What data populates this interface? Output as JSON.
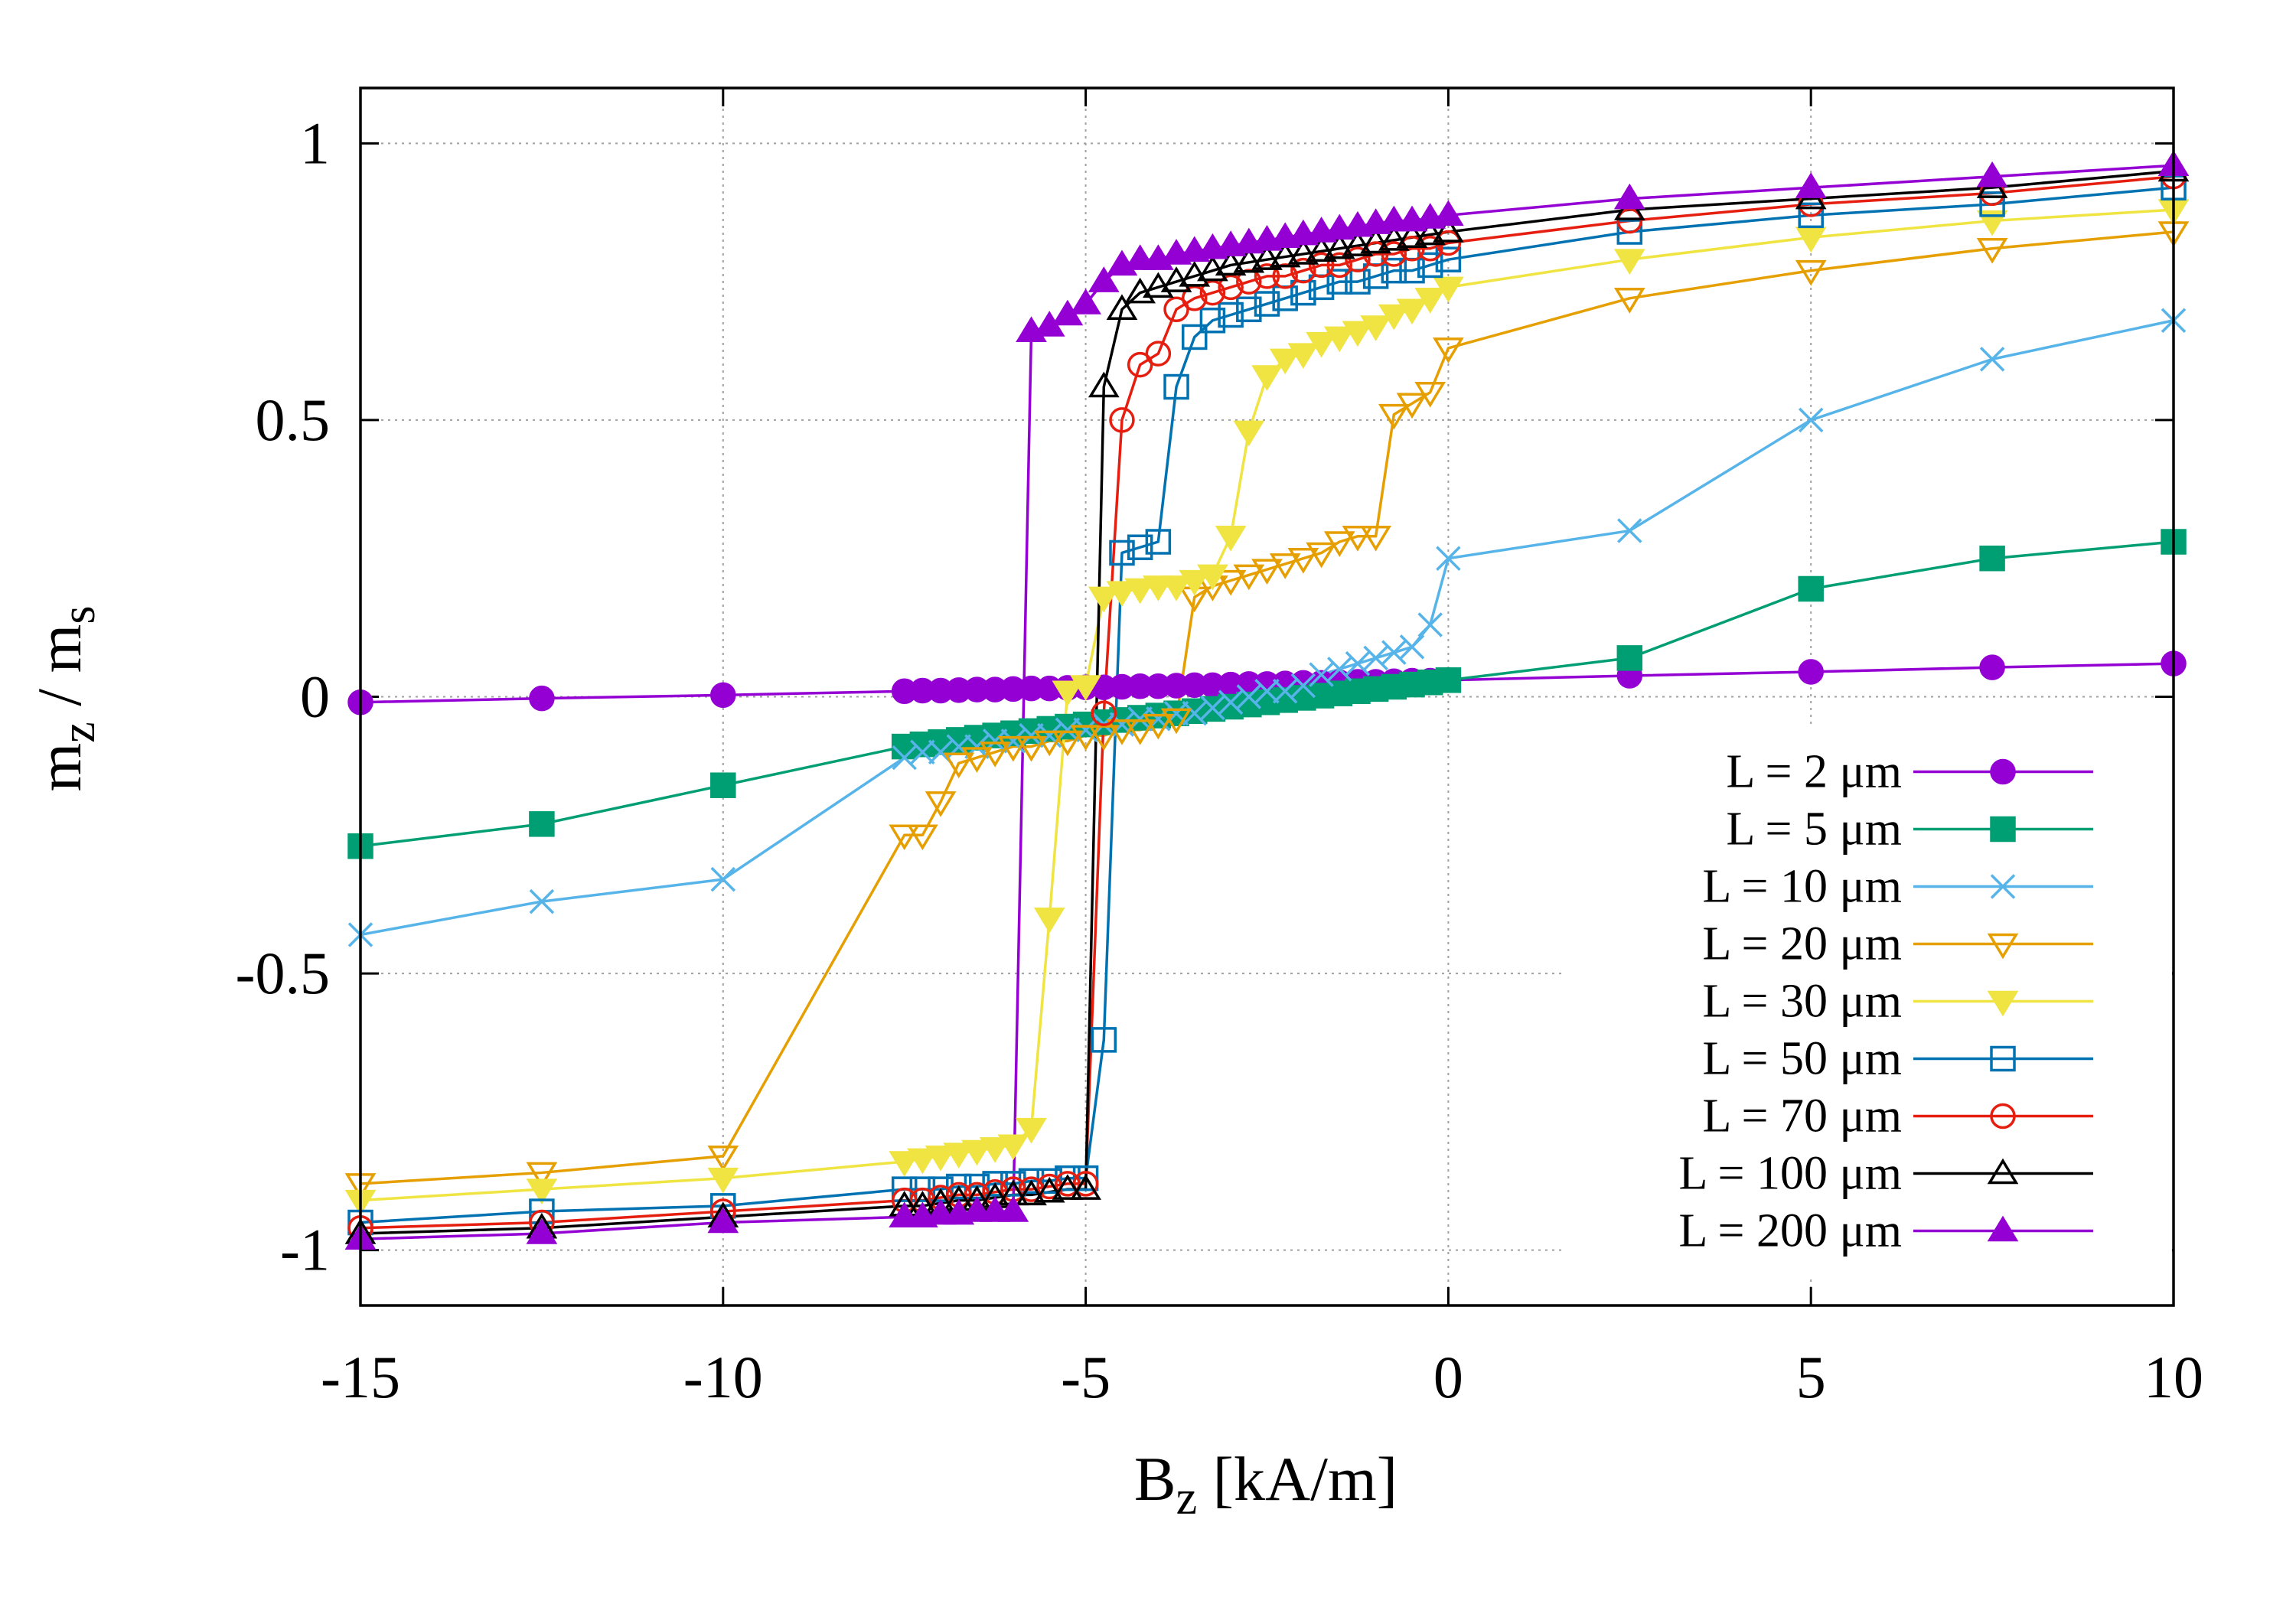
{
  "chart_data": {
    "type": "line",
    "xlabel": [
      "B",
      "z",
      " [kA/m]"
    ],
    "ylabel": [
      "m",
      "z",
      " / m",
      "s"
    ],
    "x": [
      -15,
      -12.5,
      -10,
      -7.5,
      -7.25,
      -7,
      -6.75,
      -6.5,
      -6.25,
      -6,
      -5.75,
      -5.5,
      -5.25,
      -5,
      -4.75,
      -4.5,
      -4.25,
      -4,
      -3.75,
      -3.5,
      -3.25,
      -3,
      -2.75,
      -2.5,
      -2.25,
      -2,
      -1.75,
      -1.5,
      -1.25,
      -1,
      -0.75,
      -0.5,
      -0.25,
      0,
      2.5,
      5,
      7.5,
      10
    ],
    "xlim": [
      -15,
      10
    ],
    "ylim": [
      -1.1,
      1.1
    ],
    "xticks": [
      -15,
      -10,
      -5,
      0,
      5,
      10
    ],
    "yticks": [
      -1,
      -0.5,
      0,
      0.5,
      1
    ],
    "grid": true,
    "legend": "lower right",
    "series": [
      {
        "name": "L = 2 μm",
        "color": "#9400d3",
        "marker": "circle",
        "filled": true,
        "values": [
          -0.01,
          -0.003,
          0.003,
          0.01,
          0.011,
          0.011,
          0.012,
          0.013,
          0.013,
          0.014,
          0.015,
          0.015,
          0.016,
          0.017,
          0.017,
          0.018,
          0.019,
          0.019,
          0.02,
          0.021,
          0.021,
          0.022,
          0.023,
          0.023,
          0.024,
          0.025,
          0.025,
          0.026,
          0.027,
          0.027,
          0.028,
          0.029,
          0.029,
          0.03,
          0.038,
          0.045,
          0.053,
          0.06
        ]
      },
      {
        "name": "L = 5 μm",
        "color": "#009e73",
        "marker": "square",
        "filled": true,
        "values": [
          -0.27,
          -0.23,
          -0.16,
          -0.09,
          -0.086,
          -0.082,
          -0.078,
          -0.074,
          -0.07,
          -0.066,
          -0.062,
          -0.058,
          -0.054,
          -0.05,
          -0.046,
          -0.042,
          -0.038,
          -0.034,
          -0.03,
          -0.026,
          -0.022,
          -0.018,
          -0.014,
          -0.01,
          -0.006,
          -0.002,
          0.002,
          0.006,
          0.01,
          0.014,
          0.018,
          0.022,
          0.026,
          0.03,
          0.07,
          0.195,
          0.25,
          0.28
        ]
      },
      {
        "name": "L = 10 μm",
        "color": "#56b4e9",
        "marker": "cross",
        "filled": false,
        "values": [
          -0.43,
          -0.37,
          -0.33,
          -0.11,
          -0.1,
          -0.1,
          -0.09,
          -0.09,
          -0.08,
          -0.08,
          -0.07,
          -0.07,
          -0.06,
          -0.06,
          -0.05,
          -0.05,
          -0.04,
          -0.04,
          -0.03,
          -0.03,
          -0.02,
          -0.01,
          0,
          0.01,
          0.01,
          0.02,
          0.04,
          0.05,
          0.06,
          0.07,
          0.08,
          0.09,
          0.13,
          0.25,
          0.3,
          0.5,
          0.61,
          0.68
        ]
      },
      {
        "name": "L = 20 μm",
        "color": "#e69f00",
        "marker": "triangle-down",
        "filled": false,
        "values": [
          -0.88,
          -0.86,
          -0.83,
          -0.25,
          -0.25,
          -0.19,
          -0.12,
          -0.11,
          -0.1,
          -0.09,
          -0.09,
          -0.08,
          -0.08,
          -0.07,
          -0.07,
          -0.06,
          -0.06,
          -0.05,
          -0.04,
          0.18,
          0.2,
          0.21,
          0.22,
          0.23,
          0.24,
          0.25,
          0.26,
          0.28,
          0.29,
          0.29,
          0.51,
          0.53,
          0.55,
          0.63,
          0.72,
          0.77,
          0.81,
          0.84
        ]
      },
      {
        "name": "L = 30 μm",
        "color": "#f0e442",
        "marker": "triangle-down",
        "filled": true,
        "values": [
          -0.91,
          -0.89,
          -0.87,
          -0.84,
          -0.835,
          -0.83,
          -0.825,
          -0.82,
          -0.815,
          -0.81,
          -0.78,
          -0.4,
          0.01,
          0.02,
          0.18,
          0.19,
          0.195,
          0.2,
          0.2,
          0.21,
          0.22,
          0.29,
          0.48,
          0.58,
          0.61,
          0.62,
          0.64,
          0.65,
          0.66,
          0.67,
          0.69,
          0.7,
          0.72,
          0.74,
          0.79,
          0.83,
          0.86,
          0.88
        ]
      },
      {
        "name": "L = 50 μm",
        "color": "#0072b2",
        "marker": "square",
        "filled": false,
        "values": [
          -0.95,
          -0.93,
          -0.92,
          -0.89,
          -0.89,
          -0.89,
          -0.885,
          -0.885,
          -0.88,
          -0.88,
          -0.875,
          -0.875,
          -0.87,
          -0.87,
          -0.62,
          0.26,
          0.27,
          0.28,
          0.56,
          0.65,
          0.68,
          0.69,
          0.7,
          0.71,
          0.72,
          0.73,
          0.74,
          0.75,
          0.75,
          0.76,
          0.77,
          0.77,
          0.78,
          0.79,
          0.84,
          0.87,
          0.89,
          0.92
        ]
      },
      {
        "name": "L = 70 μm",
        "color": "#e51e10",
        "marker": "circle",
        "filled": false,
        "values": [
          -0.96,
          -0.95,
          -0.93,
          -0.91,
          -0.91,
          -0.905,
          -0.9,
          -0.9,
          -0.895,
          -0.89,
          -0.89,
          -0.885,
          -0.88,
          -0.88,
          -0.03,
          0.5,
          0.6,
          0.62,
          0.7,
          0.72,
          0.73,
          0.74,
          0.75,
          0.76,
          0.76,
          0.77,
          0.78,
          0.78,
          0.79,
          0.8,
          0.8,
          0.81,
          0.81,
          0.82,
          0.86,
          0.89,
          0.91,
          0.94
        ]
      },
      {
        "name": "L = 100 μm",
        "color": "#000000",
        "marker": "triangle-up",
        "filled": false,
        "values": [
          -0.97,
          -0.96,
          -0.94,
          -0.92,
          -0.92,
          -0.915,
          -0.91,
          -0.91,
          -0.905,
          -0.9,
          -0.9,
          -0.895,
          -0.89,
          -0.89,
          0.56,
          0.7,
          0.73,
          0.74,
          0.75,
          0.76,
          0.77,
          0.78,
          0.785,
          0.79,
          0.795,
          0.8,
          0.805,
          0.81,
          0.815,
          0.82,
          0.825,
          0.83,
          0.835,
          0.84,
          0.88,
          0.9,
          0.92,
          0.95
        ]
      },
      {
        "name": "L = 200 μm",
        "color": "#9400d3",
        "marker": "triangle-up",
        "filled": true,
        "values": [
          -0.98,
          -0.97,
          -0.95,
          -0.94,
          -0.94,
          -0.935,
          -0.935,
          -0.93,
          -0.93,
          -0.93,
          0.66,
          0.67,
          0.69,
          0.71,
          0.75,
          0.78,
          0.79,
          0.79,
          0.8,
          0.805,
          0.81,
          0.815,
          0.82,
          0.825,
          0.83,
          0.835,
          0.84,
          0.845,
          0.85,
          0.855,
          0.86,
          0.86,
          0.865,
          0.87,
          0.9,
          0.92,
          0.94,
          0.96
        ]
      }
    ]
  }
}
